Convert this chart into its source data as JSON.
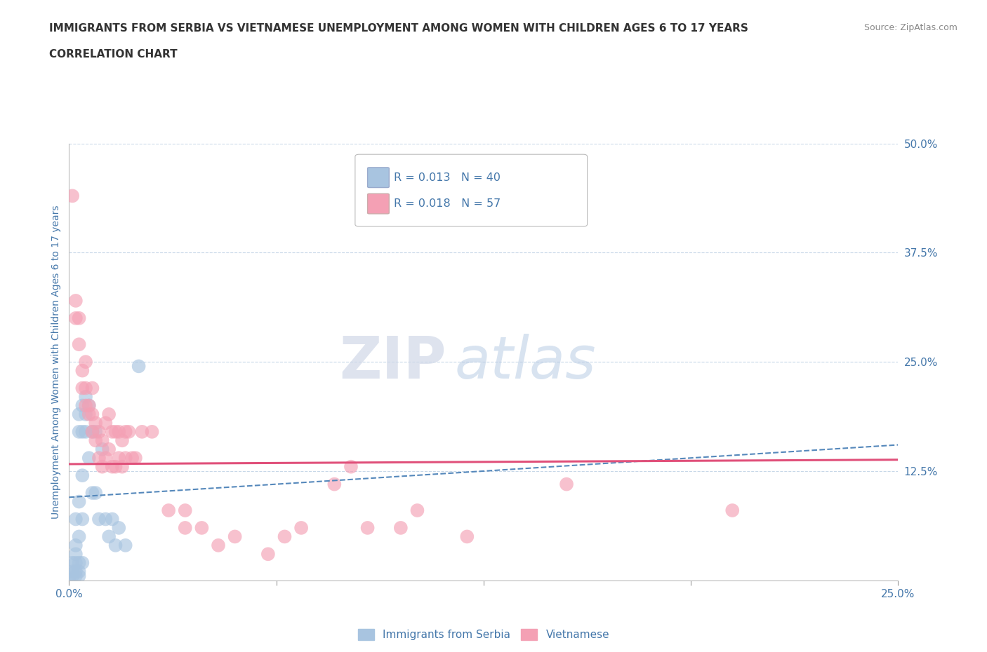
{
  "title": "IMMIGRANTS FROM SERBIA VS VIETNAMESE UNEMPLOYMENT AMONG WOMEN WITH CHILDREN AGES 6 TO 17 YEARS",
  "subtitle": "CORRELATION CHART",
  "source": "Source: ZipAtlas.com",
  "ylabel": "Unemployment Among Women with Children Ages 6 to 17 years",
  "xlabel_serbia": "Immigrants from Serbia",
  "xlabel_vietnamese": "Vietnamese",
  "watermark_zip": "ZIP",
  "watermark_atlas": "atlas",
  "xlim": [
    0.0,
    0.25
  ],
  "ylim": [
    0.0,
    0.5
  ],
  "yticks": [
    0.0,
    0.125,
    0.25,
    0.375,
    0.5
  ],
  "ytick_labels": [
    "",
    "12.5%",
    "25.0%",
    "37.5%",
    "50.0%"
  ],
  "xticks": [
    0.0,
    0.0625,
    0.125,
    0.1875,
    0.25
  ],
  "xtick_labels": [
    "0.0%",
    "",
    "",
    "",
    "25.0%"
  ],
  "serbia_color": "#a8c4e0",
  "serbian_line_color": "#5588bb",
  "vietnamese_color": "#f4a0b4",
  "vietnamese_line_color": "#e0507a",
  "r_serbia": 0.013,
  "n_serbia": 40,
  "r_vietnamese": 0.018,
  "n_vietnamese": 57,
  "serbia_scatter": [
    [
      0.0,
      0.0
    ],
    [
      0.001,
      0.005
    ],
    [
      0.001,
      0.01
    ],
    [
      0.001,
      0.02
    ],
    [
      0.002,
      0.005
    ],
    [
      0.002,
      0.01
    ],
    [
      0.002,
      0.02
    ],
    [
      0.002,
      0.03
    ],
    [
      0.002,
      0.04
    ],
    [
      0.002,
      0.07
    ],
    [
      0.003,
      0.005
    ],
    [
      0.003,
      0.01
    ],
    [
      0.003,
      0.02
    ],
    [
      0.003,
      0.05
    ],
    [
      0.003,
      0.09
    ],
    [
      0.003,
      0.17
    ],
    [
      0.003,
      0.19
    ],
    [
      0.004,
      0.02
    ],
    [
      0.004,
      0.07
    ],
    [
      0.004,
      0.12
    ],
    [
      0.004,
      0.17
    ],
    [
      0.004,
      0.2
    ],
    [
      0.005,
      0.17
    ],
    [
      0.005,
      0.19
    ],
    [
      0.005,
      0.21
    ],
    [
      0.006,
      0.14
    ],
    [
      0.006,
      0.2
    ],
    [
      0.007,
      0.1
    ],
    [
      0.007,
      0.17
    ],
    [
      0.008,
      0.1
    ],
    [
      0.008,
      0.17
    ],
    [
      0.009,
      0.07
    ],
    [
      0.01,
      0.15
    ],
    [
      0.011,
      0.07
    ],
    [
      0.012,
      0.05
    ],
    [
      0.013,
      0.07
    ],
    [
      0.014,
      0.04
    ],
    [
      0.015,
      0.06
    ],
    [
      0.017,
      0.04
    ],
    [
      0.021,
      0.245
    ]
  ],
  "vietnamese_scatter": [
    [
      0.001,
      0.44
    ],
    [
      0.002,
      0.3
    ],
    [
      0.002,
      0.32
    ],
    [
      0.003,
      0.27
    ],
    [
      0.003,
      0.3
    ],
    [
      0.004,
      0.22
    ],
    [
      0.004,
      0.24
    ],
    [
      0.005,
      0.2
    ],
    [
      0.005,
      0.22
    ],
    [
      0.005,
      0.25
    ],
    [
      0.006,
      0.19
    ],
    [
      0.006,
      0.2
    ],
    [
      0.007,
      0.17
    ],
    [
      0.007,
      0.19
    ],
    [
      0.007,
      0.22
    ],
    [
      0.008,
      0.16
    ],
    [
      0.008,
      0.18
    ],
    [
      0.009,
      0.14
    ],
    [
      0.009,
      0.17
    ],
    [
      0.01,
      0.13
    ],
    [
      0.01,
      0.16
    ],
    [
      0.011,
      0.14
    ],
    [
      0.011,
      0.18
    ],
    [
      0.012,
      0.15
    ],
    [
      0.012,
      0.19
    ],
    [
      0.013,
      0.13
    ],
    [
      0.013,
      0.17
    ],
    [
      0.014,
      0.13
    ],
    [
      0.014,
      0.17
    ],
    [
      0.015,
      0.14
    ],
    [
      0.015,
      0.17
    ],
    [
      0.016,
      0.13
    ],
    [
      0.016,
      0.16
    ],
    [
      0.017,
      0.14
    ],
    [
      0.017,
      0.17
    ],
    [
      0.018,
      0.17
    ],
    [
      0.019,
      0.14
    ],
    [
      0.02,
      0.14
    ],
    [
      0.022,
      0.17
    ],
    [
      0.025,
      0.17
    ],
    [
      0.03,
      0.08
    ],
    [
      0.035,
      0.06
    ],
    [
      0.035,
      0.08
    ],
    [
      0.04,
      0.06
    ],
    [
      0.045,
      0.04
    ],
    [
      0.05,
      0.05
    ],
    [
      0.06,
      0.03
    ],
    [
      0.065,
      0.05
    ],
    [
      0.07,
      0.06
    ],
    [
      0.08,
      0.11
    ],
    [
      0.085,
      0.13
    ],
    [
      0.09,
      0.06
    ],
    [
      0.1,
      0.06
    ],
    [
      0.105,
      0.08
    ],
    [
      0.12,
      0.05
    ],
    [
      0.15,
      0.11
    ],
    [
      0.2,
      0.08
    ]
  ],
  "serbia_line_x": [
    0.0,
    0.25
  ],
  "serbia_line_y": [
    0.095,
    0.155
  ],
  "vietnamese_line_x": [
    0.0,
    0.25
  ],
  "vietnamese_line_y": [
    0.133,
    0.138
  ],
  "background_color": "#ffffff",
  "grid_color": "#c8d8e8",
  "title_color": "#333333",
  "axis_label_color": "#4477aa",
  "tick_label_color": "#4477aa",
  "legend_color": "#4477aa"
}
